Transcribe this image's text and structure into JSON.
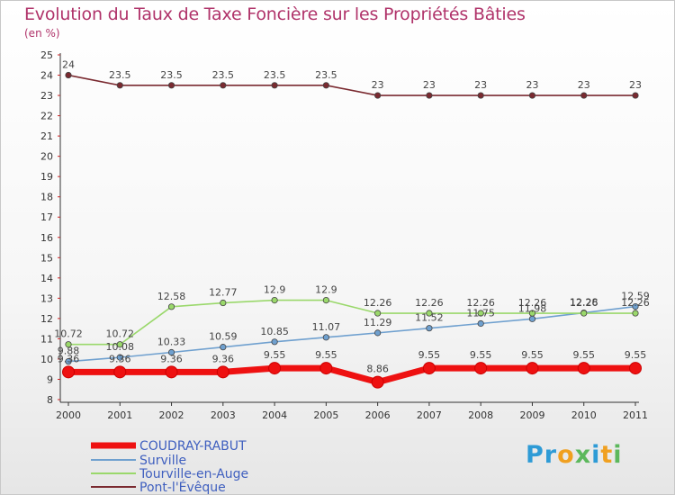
{
  "title": "Evolution du Taux de Taxe Foncière sur les Propriétés Bâties",
  "unit": "(en %)",
  "logo": "Proxiti",
  "chart_data": {
    "type": "line",
    "title": "Evolution du Taux de Taxe Foncière sur les Propriétés Bâties",
    "ylabel": "(en %)",
    "xlabel": "",
    "ylim": [
      8,
      25
    ],
    "yticks": [
      8,
      9,
      10,
      11,
      12,
      13,
      14,
      15,
      16,
      17,
      18,
      19,
      20,
      21,
      22,
      23,
      24,
      25
    ],
    "categories": [
      "2000",
      "2001",
      "2002",
      "2003",
      "2004",
      "2005",
      "2006",
      "2007",
      "2008",
      "2009",
      "2010",
      "2011"
    ],
    "legend_position": "bottom-left",
    "series": [
      {
        "name": "COUDRAY-RABUT",
        "color": "#ee1111",
        "values": [
          9.36,
          9.36,
          9.36,
          9.36,
          9.55,
          9.55,
          8.86,
          9.55,
          9.55,
          9.55,
          9.55,
          9.55
        ],
        "labels": [
          "9.36",
          "9.36",
          "9.36",
          "9.36",
          "9.55",
          "9.55",
          "8.86",
          "9.55",
          "9.55",
          "9.55",
          "9.55",
          "9.55"
        ]
      },
      {
        "name": "Surville",
        "color": "#6fa0cf",
        "values": [
          9.88,
          10.08,
          10.33,
          10.59,
          10.85,
          11.07,
          11.29,
          11.52,
          11.75,
          11.98,
          12.28,
          12.59
        ],
        "labels": [
          "9.88",
          "10.08",
          "10.33",
          "10.59",
          "10.85",
          "11.07",
          "11.29",
          "11.52",
          "11.75",
          "11.98",
          "12.28",
          "12.59"
        ]
      },
      {
        "name": "Tourville-en-Auge",
        "color": "#9ad86b",
        "values": [
          10.72,
          10.72,
          12.58,
          12.77,
          12.9,
          12.9,
          12.26,
          12.26,
          12.26,
          12.26,
          12.26,
          12.26
        ],
        "labels": [
          "10.72",
          "10.72",
          "12.58",
          "12.77",
          "12.9",
          "12.9",
          "12.26",
          "12.26",
          "12.26",
          "12.26",
          "12.26",
          "12.26"
        ]
      },
      {
        "name": "Pont-l'Évêque",
        "color": "#7a2a30",
        "values": [
          24,
          23.5,
          23.5,
          23.5,
          23.5,
          23.5,
          23,
          23,
          23,
          23,
          23,
          23
        ],
        "labels": [
          "24",
          "23.5",
          "23.5",
          "23.5",
          "23.5",
          "23.5",
          "23",
          "23",
          "23",
          "23",
          "23",
          "23"
        ]
      }
    ]
  }
}
